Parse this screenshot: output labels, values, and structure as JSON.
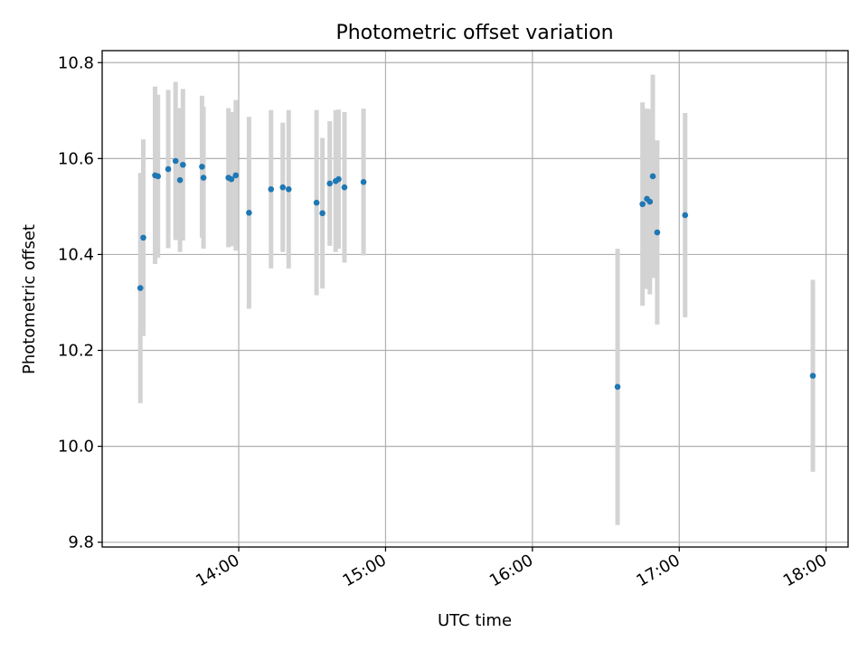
{
  "chart_data": {
    "type": "scatter",
    "title": "Photometric offset variation",
    "xlabel": "UTC time",
    "ylabel": "Photometric offset",
    "x_unit": "UTC time (hours)",
    "xlim": [
      13.07,
      18.15
    ],
    "ylim": [
      9.79,
      10.825
    ],
    "x_ticks": [
      14,
      15,
      16,
      17,
      18
    ],
    "x_tick_labels": [
      "14:00",
      "15:00",
      "16:00",
      "17:00",
      "18:00"
    ],
    "y_ticks": [
      9.8,
      10.0,
      10.2,
      10.4,
      10.6,
      10.8
    ],
    "y_tick_labels": [
      "9.8",
      "10.0",
      "10.2",
      "10.4",
      "10.6",
      "10.8"
    ],
    "grid": true,
    "x_tick_rotation": "30 degrees",
    "colors": {
      "points": "#1f77b4",
      "error_bars": "#d3d3d3",
      "grid": "#b0b0b0"
    },
    "series": [
      {
        "error_bars": true,
        "points": [
          {
            "x": 13.33,
            "y": 10.33,
            "yerr": 0.24
          },
          {
            "x": 13.35,
            "y": 10.435,
            "yerr": 0.205
          },
          {
            "x": 13.43,
            "y": 10.565,
            "yerr": 0.185
          },
          {
            "x": 13.45,
            "y": 10.563,
            "yerr": 0.17
          },
          {
            "x": 13.52,
            "y": 10.578,
            "yerr": 0.165
          },
          {
            "x": 13.57,
            "y": 10.595,
            "yerr": 0.165
          },
          {
            "x": 13.6,
            "y": 10.555,
            "yerr": 0.15
          },
          {
            "x": 13.62,
            "y": 10.587,
            "yerr": 0.158
          },
          {
            "x": 13.75,
            "y": 10.583,
            "yerr": 0.148
          },
          {
            "x": 13.76,
            "y": 10.56,
            "yerr": 0.148
          },
          {
            "x": 13.93,
            "y": 10.56,
            "yerr": 0.145
          },
          {
            "x": 13.95,
            "y": 10.557,
            "yerr": 0.14
          },
          {
            "x": 13.98,
            "y": 10.565,
            "yerr": 0.157
          },
          {
            "x": 14.07,
            "y": 10.487,
            "yerr": 0.2
          },
          {
            "x": 14.22,
            "y": 10.536,
            "yerr": 0.165
          },
          {
            "x": 14.3,
            "y": 10.54,
            "yerr": 0.135
          },
          {
            "x": 14.34,
            "y": 10.536,
            "yerr": 0.165
          },
          {
            "x": 14.53,
            "y": 10.508,
            "yerr": 0.193
          },
          {
            "x": 14.57,
            "y": 10.486,
            "yerr": 0.157
          },
          {
            "x": 14.62,
            "y": 10.548,
            "yerr": 0.13
          },
          {
            "x": 14.66,
            "y": 10.553,
            "yerr": 0.148
          },
          {
            "x": 14.68,
            "y": 10.557,
            "yerr": 0.145
          },
          {
            "x": 14.72,
            "y": 10.54,
            "yerr": 0.157
          },
          {
            "x": 14.85,
            "y": 10.551,
            "yerr": 0.153
          },
          {
            "x": 16.58,
            "y": 10.124,
            "yerr": 0.288
          },
          {
            "x": 16.75,
            "y": 10.505,
            "yerr": 0.212
          },
          {
            "x": 16.78,
            "y": 10.516,
            "yerr": 0.188
          },
          {
            "x": 16.8,
            "y": 10.51,
            "yerr": 0.193
          },
          {
            "x": 16.82,
            "y": 10.563,
            "yerr": 0.212
          },
          {
            "x": 16.85,
            "y": 10.446,
            "yerr": 0.192
          },
          {
            "x": 17.04,
            "y": 10.482,
            "yerr": 0.213
          },
          {
            "x": 17.91,
            "y": 10.147,
            "yerr": 0.2
          }
        ]
      }
    ]
  }
}
